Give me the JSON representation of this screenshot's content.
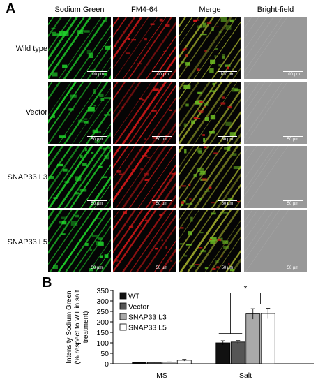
{
  "panel_a": {
    "letter": "A",
    "columns": [
      "Sodium Green",
      "FM4-64",
      "Merge",
      "Bright-field"
    ],
    "rows": [
      {
        "label": "Wild type",
        "scale": "100 µm"
      },
      {
        "label": "Vector",
        "scale": "50 µm"
      },
      {
        "label": "SNAP33 L3",
        "scale": "50 µm"
      },
      {
        "label": "SNAP33 L5",
        "scale": "50 µm"
      }
    ]
  },
  "panel_b": {
    "letter": "B",
    "significance": "*"
  },
  "colors": {
    "green": "#1fcf2a",
    "red": "#d01818",
    "wt": "#111111",
    "vector": "#555555",
    "l3": "#a9a9a9",
    "l5": "#ffffff"
  },
  "chart_data": {
    "type": "bar",
    "categories": [
      "MS",
      "Salt"
    ],
    "series": [
      {
        "name": "WT",
        "values": [
          6,
          100
        ],
        "errors": [
          1,
          10
        ]
      },
      {
        "name": "Vector",
        "values": [
          7,
          104
        ],
        "errors": [
          1,
          7
        ]
      },
      {
        "name": "SNAP33 L3",
        "values": [
          8,
          238
        ],
        "errors": [
          1,
          25
        ]
      },
      {
        "name": "SNAP33 L5",
        "values": [
          17,
          240
        ],
        "errors": [
          4,
          25
        ]
      }
    ],
    "ylabel_lines": [
      "Intensity Sodium Green",
      "(% respect to WT in salt",
      "treatment)"
    ],
    "ylim": [
      0,
      350
    ],
    "yticks": [
      0,
      50,
      100,
      150,
      200,
      250,
      300,
      350
    ],
    "legend": "top-left"
  }
}
